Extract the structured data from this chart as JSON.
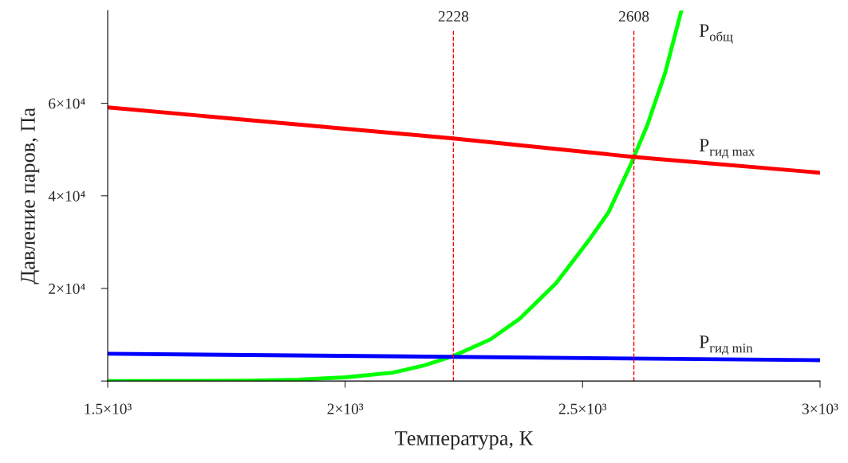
{
  "chart_data": {
    "type": "line",
    "xlabel": "Температура, К",
    "ylabel": "Давление паров, Па",
    "xlim": [
      1500,
      3000
    ],
    "ylim": [
      0,
      80000
    ],
    "xticks": [
      {
        "value": 1500,
        "label": "1.5×10³"
      },
      {
        "value": 2000,
        "label": "2×10³"
      },
      {
        "value": 2500,
        "label": "2.5×10³"
      },
      {
        "value": 3000,
        "label": "3×10³"
      }
    ],
    "yticks": [
      {
        "value": 0,
        "label": null
      },
      {
        "value": 20000,
        "label": "2×10⁴"
      },
      {
        "value": 40000,
        "label": "4×10⁴"
      },
      {
        "value": 60000,
        "label": "6×10⁴"
      }
    ],
    "grid": false,
    "legend": false,
    "marker": "none",
    "line_style": "solid",
    "series": [
      {
        "name": "P$_{общ}$",
        "color": "#00ff00",
        "x": [
          1500,
          1700,
          1800,
          1900,
          2000,
          2100,
          2164,
          2228,
          2306,
          2368,
          2444,
          2511,
          2555,
          2602,
          2636,
          2674,
          2708
        ],
        "values": [
          0,
          50,
          100,
          300,
          800,
          1800,
          3300,
          5400,
          9000,
          13500,
          21100,
          30100,
          36500,
          46900,
          55200,
          66600,
          80000
        ]
      },
      {
        "name": "P$_{гид max}$",
        "color": "#ff0000",
        "x": [
          1500,
          2228,
          2608,
          3000
        ],
        "values": [
          59100,
          52400,
          48400,
          45000
        ]
      },
      {
        "name": "P$_{гид min}$",
        "color": "#0000ff",
        "x": [
          1500,
          3000
        ],
        "values": [
          5900,
          4500
        ]
      }
    ],
    "ref_lines": [
      {
        "axis": "x",
        "value": 2228,
        "label": "2228",
        "color": "#ff0000",
        "line_style": "dashed"
      },
      {
        "axis": "x",
        "value": 2608,
        "label": "2608",
        "color": "#ff0000",
        "line_style": "dashed"
      }
    ]
  }
}
